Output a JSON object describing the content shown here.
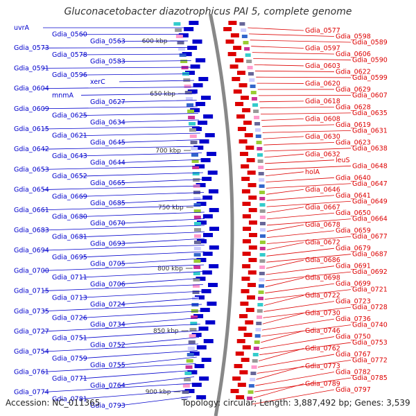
{
  "title": "Gluconacetobacter diazotrophicus PAI 5, complete genome",
  "footer": {
    "accession_text": "Accession: NC_011365",
    "summary_text": "Topology: circular; Length: 3,887,492 bp; Genes: 3,539"
  },
  "colors": {
    "left_strand": "#0000cc",
    "right_strand": "#dd0000",
    "backbone": "#888888",
    "tick": "#228822"
  },
  "scale_ticks": [
    "600 kbp",
    "650 kbp",
    "700 kbp",
    "750 kbp",
    "800 kbp",
    "850 kbp",
    "900 kbp"
  ],
  "left_labels": [
    "uvrA",
    "Gdia_0560",
    "Gdia_0563",
    "Gdia_0573",
    "Gdia_0578",
    "Gdia_0583",
    "Gdia_0591",
    "Gdia_0596",
    "xerC",
    "Gdia_0604",
    "mnmA",
    "Gdia_0627",
    "Gdia_0609",
    "Gdia_0625",
    "Gdia_0634",
    "Gdia_0615",
    "Gdia_0621",
    "Gdia_0645",
    "Gdia_0642",
    "Gdia_0643",
    "Gdia_0644",
    "Gdia_0653",
    "Gdia_0652",
    "Gdia_0665",
    "Gdia_0654",
    "Gdia_0669",
    "Gdia_0685",
    "Gdia_0661",
    "Gdia_0680",
    "Gdia_0670",
    "Gdia_0683",
    "Gdia_0681",
    "Gdia_0693",
    "Gdia_0694",
    "Gdia_0695",
    "Gdia_0705",
    "Gdia_0700",
    "Gdia_0711",
    "Gdia_0706",
    "Gdia_0715",
    "Gdia_0713",
    "Gdia_0724",
    "Gdia_0735",
    "Gdia_0726",
    "Gdia_0734",
    "Gdia_0727",
    "Gdia_0751",
    "Gdia_0752",
    "Gdia_0754",
    "Gdia_0759",
    "Gdia_0755",
    "Gdia_0761",
    "Gdia_0771",
    "Gdia_0764",
    "Gdia_0774",
    "Gdia_0781",
    "Gdia_0793"
  ],
  "right_labels": [
    "Gdia_0577",
    "Gdia_0598",
    "Gdia_0589",
    "Gdia_0597",
    "Gdia_0606",
    "Gdia_0590",
    "Gdia_0603",
    "Gdia_0622",
    "Gdia_0599",
    "Gdia_0620",
    "Gdia_0629",
    "Gdia_0607",
    "Gdia_0618",
    "Gdia_0628",
    "Gdia_0635",
    "Gdia_0608",
    "Gdia_0619",
    "Gdia_0631",
    "Gdia_0630",
    "Gdia_0623",
    "Gdia_0638",
    "Gdia_0632",
    "leuS",
    "Gdia_0648",
    "holA",
    "Gdia_0640",
    "Gdia_0647",
    "Gdia_0646",
    "Gdia_0641",
    "Gdia_0649",
    "Gdia_0667",
    "Gdia_0650",
    "Gdia_0664",
    "Gdia_0678",
    "Gdia_0659",
    "Gdia_0677",
    "Gdia_0672",
    "Gdia_0679",
    "Gdia_0687",
    "Gdia_0686",
    "Gdia_0691",
    "Gdia_0692",
    "Gdia_0698",
    "Gdia_0699",
    "Gdia_0721",
    "Gdia_0722",
    "Gdia_0723",
    "Gdia_0728",
    "Gdia_0730",
    "Gdia_0736",
    "Gdia_0740",
    "Gdia_0746",
    "Gdia_0750",
    "Gdia_0753",
    "Gdia_0762",
    "Gdia_0767",
    "Gdia_0772",
    "Gdia_0773",
    "Gdia_0782",
    "Gdia_0785",
    "Gdia_0789",
    "Gdia_0797"
  ]
}
